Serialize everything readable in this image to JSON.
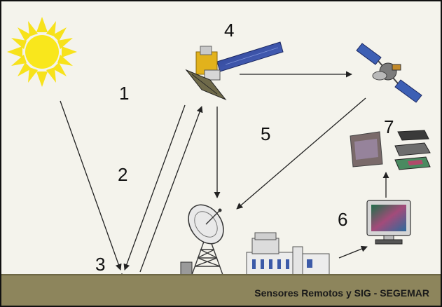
{
  "labels": {
    "n1": "1",
    "n2": "2",
    "n3": "3",
    "n4": "4",
    "n5": "5",
    "n6": "6",
    "n7": "7"
  },
  "caption": "Sensores Remotos y SIG - SEGEMAR",
  "icons": {
    "sun": "sun-icon",
    "satellite_sensor": "satellite-icon",
    "relay_satellite": "relay-satellite-icon",
    "ground_station": "satellite-dish-icon",
    "processing_building": "building-icon",
    "computer": "computer-monitor-icon",
    "image_layers": "image-layers-icon"
  },
  "colors": {
    "sun": "#f7e21b",
    "ground": "#8d855c",
    "background": "#f4f3ec",
    "arrow": "#222222"
  }
}
